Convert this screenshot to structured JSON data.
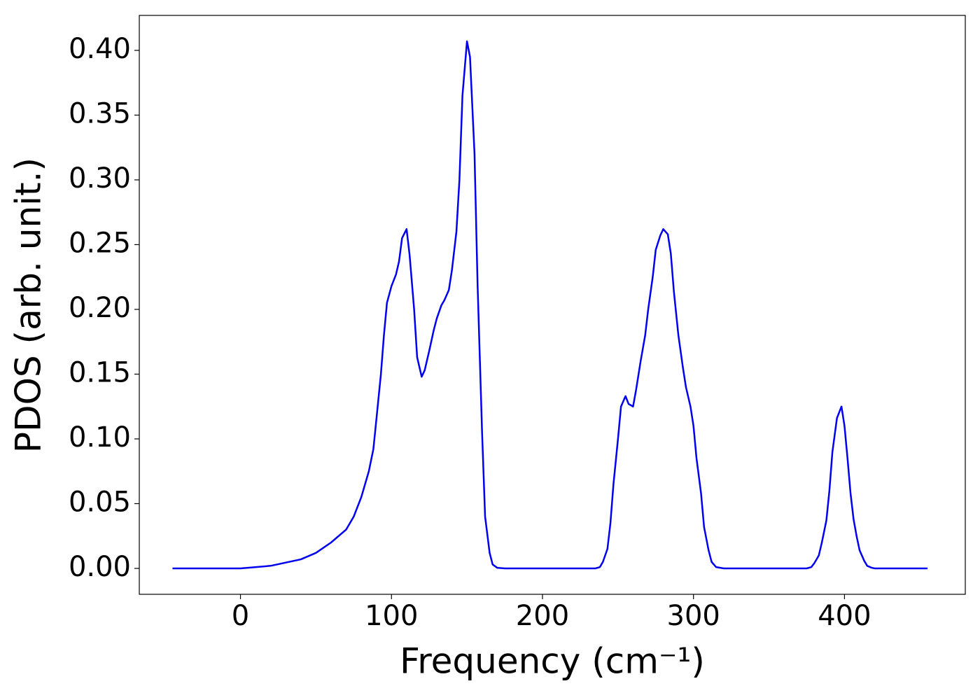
{
  "chart_data": {
    "type": "line",
    "xlabel": "Frequency (cm⁻¹)",
    "ylabel": "PDOS (arb. unit.)",
    "x": [
      -45,
      0,
      20,
      40,
      50,
      60,
      70,
      75,
      80,
      85,
      88,
      90,
      93,
      95,
      97,
      100,
      103,
      105,
      107,
      110,
      112,
      115,
      117,
      120,
      122,
      125,
      128,
      130,
      133,
      135,
      138,
      140,
      143,
      145,
      147,
      150,
      152,
      155,
      157,
      160,
      162,
      165,
      167,
      170,
      175,
      235,
      238,
      240,
      243,
      245,
      247,
      250,
      252,
      255,
      257,
      260,
      262,
      265,
      268,
      270,
      273,
      275,
      278,
      280,
      283,
      285,
      287,
      290,
      293,
      295,
      298,
      300,
      302,
      305,
      307,
      310,
      312,
      315,
      320,
      375,
      378,
      380,
      383,
      385,
      388,
      390,
      392,
      395,
      398,
      400,
      402,
      404,
      406,
      408,
      410,
      413,
      415,
      418,
      420,
      455
    ],
    "series": [
      {
        "name": "PDOS",
        "color": "#0000ee",
        "values": [
          0,
          0,
          0.002,
          0.007,
          0.012,
          0.02,
          0.03,
          0.04,
          0.055,
          0.075,
          0.092,
          0.115,
          0.15,
          0.18,
          0.205,
          0.218,
          0.227,
          0.237,
          0.255,
          0.262,
          0.242,
          0.2,
          0.163,
          0.148,
          0.153,
          0.168,
          0.184,
          0.193,
          0.203,
          0.207,
          0.215,
          0.23,
          0.26,
          0.3,
          0.365,
          0.407,
          0.395,
          0.32,
          0.22,
          0.105,
          0.04,
          0.012,
          0.003,
          0.0005,
          0,
          0,
          0.001,
          0.005,
          0.015,
          0.035,
          0.065,
          0.1,
          0.125,
          0.133,
          0.127,
          0.125,
          0.138,
          0.16,
          0.18,
          0.2,
          0.225,
          0.246,
          0.257,
          0.262,
          0.258,
          0.243,
          0.214,
          0.18,
          0.155,
          0.14,
          0.125,
          0.11,
          0.085,
          0.058,
          0.032,
          0.014,
          0.005,
          0.001,
          0,
          0,
          0.001,
          0.004,
          0.01,
          0.02,
          0.037,
          0.06,
          0.09,
          0.116,
          0.125,
          0.11,
          0.085,
          0.058,
          0.038,
          0.025,
          0.014,
          0.006,
          0.002,
          0.0005,
          0,
          0
        ]
      }
    ],
    "xlim": [
      -67,
      480
    ],
    "xticks": [
      0,
      100,
      200,
      300,
      400
    ],
    "ylim": [
      -0.02,
      0.427
    ],
    "yticks": [
      {
        "value": 0,
        "label": "0.00"
      },
      {
        "value": 0.05,
        "label": "0.05"
      },
      {
        "value": 0.1,
        "label": "0.10"
      },
      {
        "value": 0.15,
        "label": "0.15"
      },
      {
        "value": 0.2,
        "label": "0.20"
      },
      {
        "value": 0.25,
        "label": "0.25"
      },
      {
        "value": 0.3,
        "label": "0.30"
      },
      {
        "value": 0.35,
        "label": "0.35"
      },
      {
        "value": 0.4,
        "label": "0.40"
      }
    ],
    "grid": false
  }
}
